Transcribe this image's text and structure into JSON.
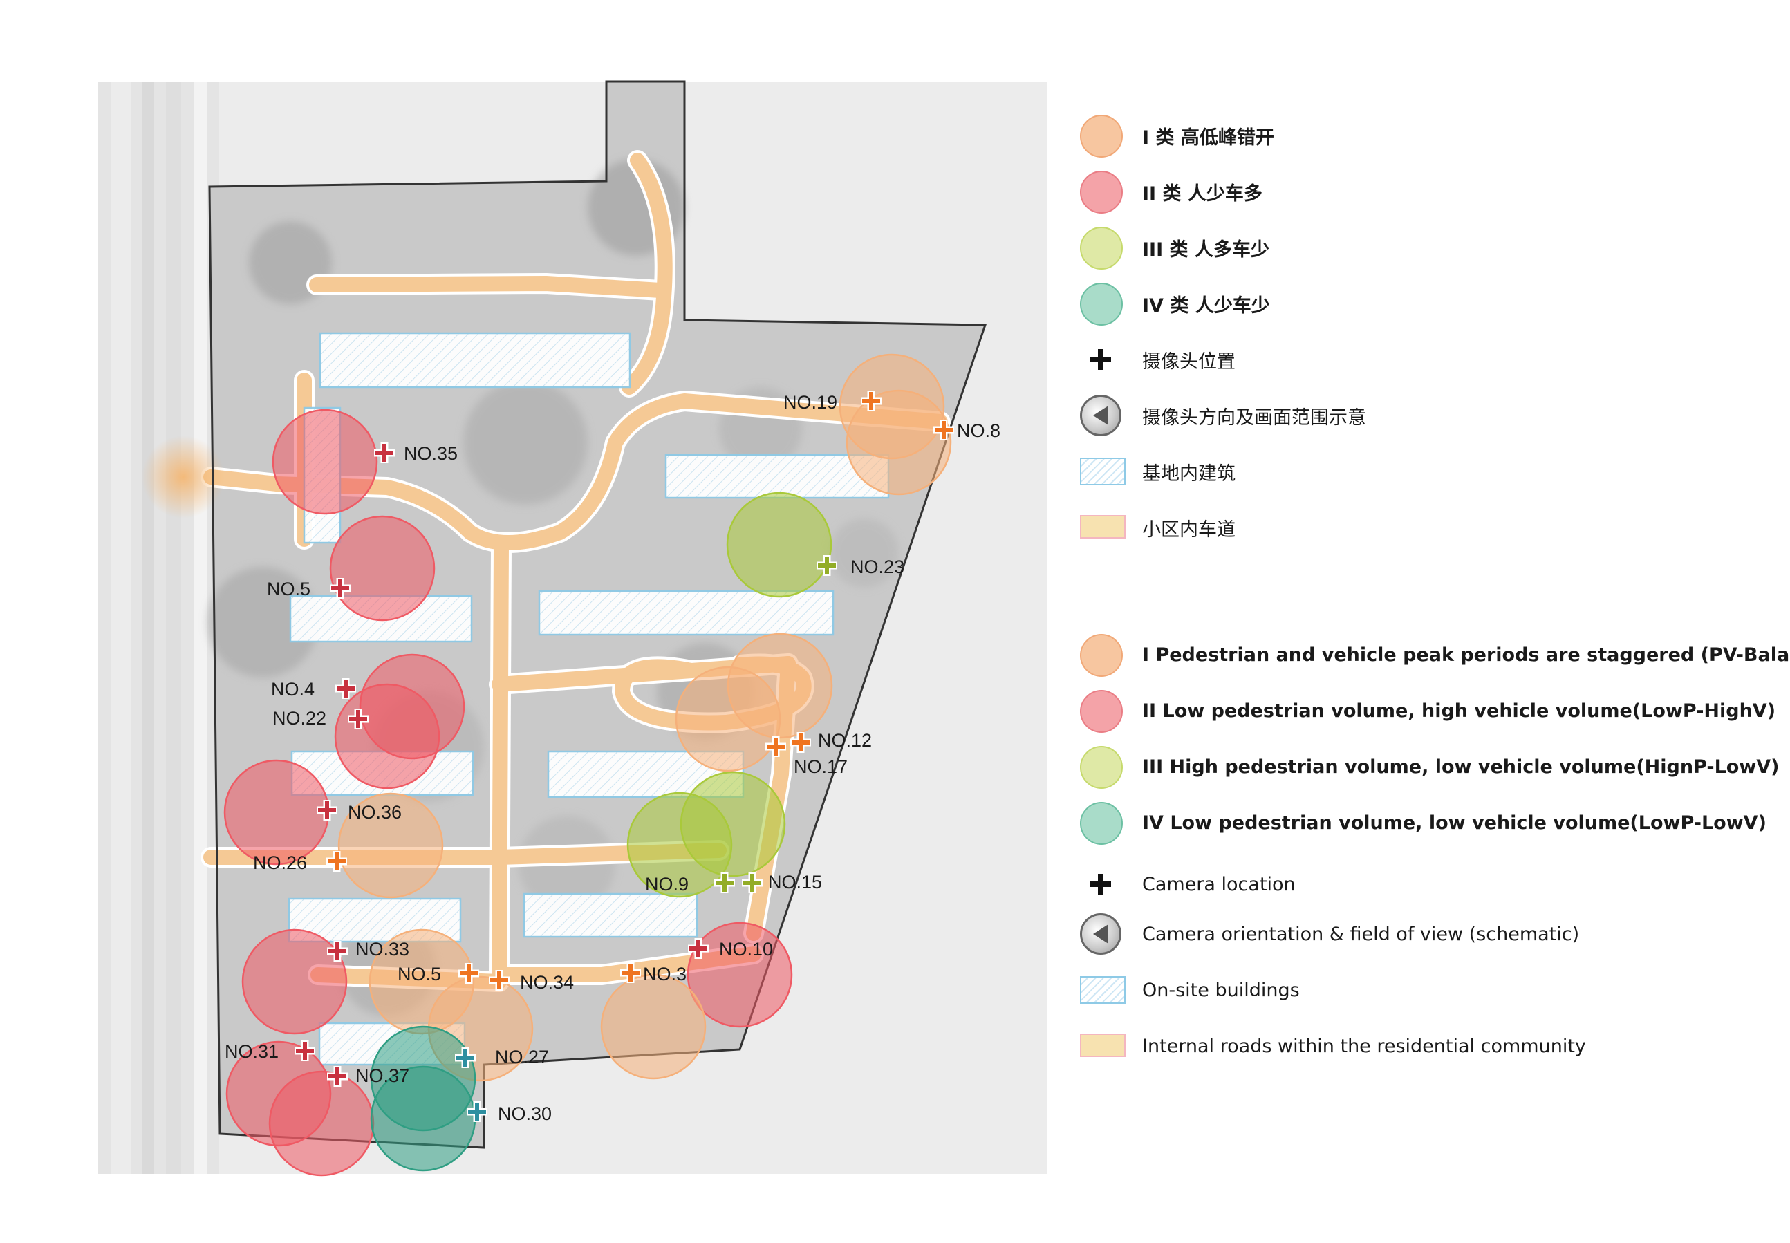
{
  "colors": {
    "type_I": "#f5b07a",
    "type_II": "#ef5a64",
    "type_III": "#a9c93a",
    "type_IV": "#2f9e83",
    "cam_I": "#ef7420",
    "cam_II": "#c8313f",
    "cam_III": "#93ad27",
    "cam_IV": "#2e8fa0",
    "road": "#f5c995",
    "building_border": "#8ecae6"
  },
  "map": {
    "cameras": [
      {
        "label": "NO.19",
        "type": "I"
      },
      {
        "label": "NO.8",
        "type": "I"
      },
      {
        "label": "NO.35",
        "type": "II"
      },
      {
        "label": "NO.23",
        "type": "III"
      },
      {
        "label": "NO.5",
        "type": "II"
      },
      {
        "label": "NO.4",
        "type": "II"
      },
      {
        "label": "NO.22",
        "type": "II"
      },
      {
        "label": "NO.12",
        "type": "I"
      },
      {
        "label": "NO.17",
        "type": "I"
      },
      {
        "label": "NO.36",
        "type": "II"
      },
      {
        "label": "NO.26",
        "type": "I"
      },
      {
        "label": "NO.9",
        "type": "III"
      },
      {
        "label": "NO.15",
        "type": "III"
      },
      {
        "label": "NO.33",
        "type": "II"
      },
      {
        "label": "NO.10",
        "type": "II"
      },
      {
        "label": "NO.5",
        "type": "I"
      },
      {
        "label": "NO.34",
        "type": "I"
      },
      {
        "label": "NO.3",
        "type": "I"
      },
      {
        "label": "NO.31",
        "type": "II"
      },
      {
        "label": "NO.37",
        "type": "II"
      },
      {
        "label": "NO.27",
        "type": "IV"
      },
      {
        "label": "NO.30",
        "type": "IV"
      }
    ]
  },
  "legend": {
    "cn": [
      {
        "symbol": "circle",
        "type": "I",
        "text": "I 类 高低峰错开"
      },
      {
        "symbol": "circle",
        "type": "II",
        "text": "II 类 人少车多"
      },
      {
        "symbol": "circle",
        "type": "III",
        "text": "III 类 人多车少"
      },
      {
        "symbol": "circle",
        "type": "IV",
        "text": "IV 类 人少车少"
      },
      {
        "symbol": "plus-icon",
        "text": "摄像头位置"
      },
      {
        "symbol": "camera-view-icon",
        "text": "摄像头方向及画面范围示意"
      },
      {
        "symbol": "building-swatch",
        "text": "基地内建筑"
      },
      {
        "symbol": "road-swatch",
        "text": "小区内车道"
      }
    ],
    "en": [
      {
        "symbol": "circle",
        "type": "I",
        "text": "I Pedestrian and vehicle peak periods are staggered (PV-Balanced)"
      },
      {
        "symbol": "circle",
        "type": "II",
        "text": "II Low pedestrian volume, high vehicle volume(LowP-HighV)"
      },
      {
        "symbol": "circle",
        "type": "III",
        "text": "III High pedestrian volume, low vehicle volume(HignP-LowV)"
      },
      {
        "symbol": "circle",
        "type": "IV",
        "text": "IV Low pedestrian volume, low vehicle volume(LowP-LowV)"
      },
      {
        "symbol": "plus-icon",
        "text": "Camera location"
      },
      {
        "symbol": "camera-view-icon",
        "text": "Camera orientation & field of view (schematic)"
      },
      {
        "symbol": "building-swatch",
        "text": "On-site buildings"
      },
      {
        "symbol": "road-swatch",
        "text": "Internal roads within the residential community"
      }
    ]
  }
}
